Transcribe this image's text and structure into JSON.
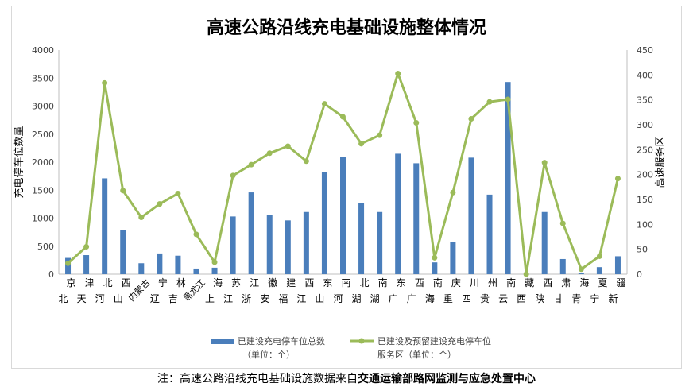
{
  "chart_data": {
    "type": "bar",
    "title": "高速公路沿线充电基础设施整体情况",
    "ylabel_left": "充电停车位数量",
    "ylabel_right": "高速服务区",
    "ylim_left": [
      0,
      4000
    ],
    "yticks_left": [
      0,
      500,
      1000,
      1500,
      2000,
      2500,
      3000,
      3500,
      4000
    ],
    "ylim_right": [
      0,
      450
    ],
    "yticks_right": [
      0,
      50,
      100,
      150,
      200,
      250,
      300,
      350,
      400,
      450
    ],
    "grid": false,
    "legend_position": "bottom",
    "categories": [
      [
        "北京"
      ],
      [
        "天津"
      ],
      [
        "河北"
      ],
      [
        "山西"
      ],
      [
        "内蒙古"
      ],
      [
        "辽宁"
      ],
      [
        "吉林"
      ],
      [
        "黑龙江"
      ],
      [
        "上海"
      ],
      [
        "江苏"
      ],
      [
        "浙江"
      ],
      [
        "安徽"
      ],
      [
        "福建"
      ],
      [
        "江西"
      ],
      [
        "山东"
      ],
      [
        "河南"
      ],
      [
        "湖北"
      ],
      [
        "湖南"
      ],
      [
        "广东"
      ],
      [
        "广西"
      ],
      [
        "海南"
      ],
      [
        "重庆"
      ],
      [
        "四川"
      ],
      [
        "贵州"
      ],
      [
        "云南"
      ],
      [
        "西藏"
      ],
      [
        "陕西"
      ],
      [
        "甘肃"
      ],
      [
        "青海"
      ],
      [
        "宁夏"
      ],
      [
        "新疆"
      ]
    ],
    "series": [
      {
        "name": "已建设充电停车位总数",
        "name_line2": "（单位：个）",
        "type": "bar",
        "axis": "left",
        "color": "#4a7ebb",
        "values": [
          290,
          340,
          1710,
          790,
          195,
          370,
          330,
          100,
          115,
          1030,
          1460,
          1060,
          960,
          1110,
          1820,
          2090,
          1270,
          1110,
          2150,
          1980,
          210,
          570,
          2080,
          1420,
          3430,
          0,
          1110,
          270,
          20,
          125,
          320
        ]
      },
      {
        "name": "已建设及预留建设充电停车位",
        "name_line2": "服务区（单位：个）",
        "type": "line",
        "axis": "right",
        "color": "#9bbb59",
        "values": [
          22,
          55,
          384,
          168,
          114,
          141,
          162,
          80,
          24,
          198,
          220,
          243,
          257,
          227,
          342,
          316,
          262,
          279,
          403,
          304,
          33,
          164,
          312,
          346,
          351,
          0,
          224,
          102,
          10,
          36,
          192
        ]
      }
    ]
  },
  "footnote": {
    "prefix": "注：高速公路沿线充电基础设施数据来自",
    "source": "交通运输部路网监测与应急处置中心"
  }
}
